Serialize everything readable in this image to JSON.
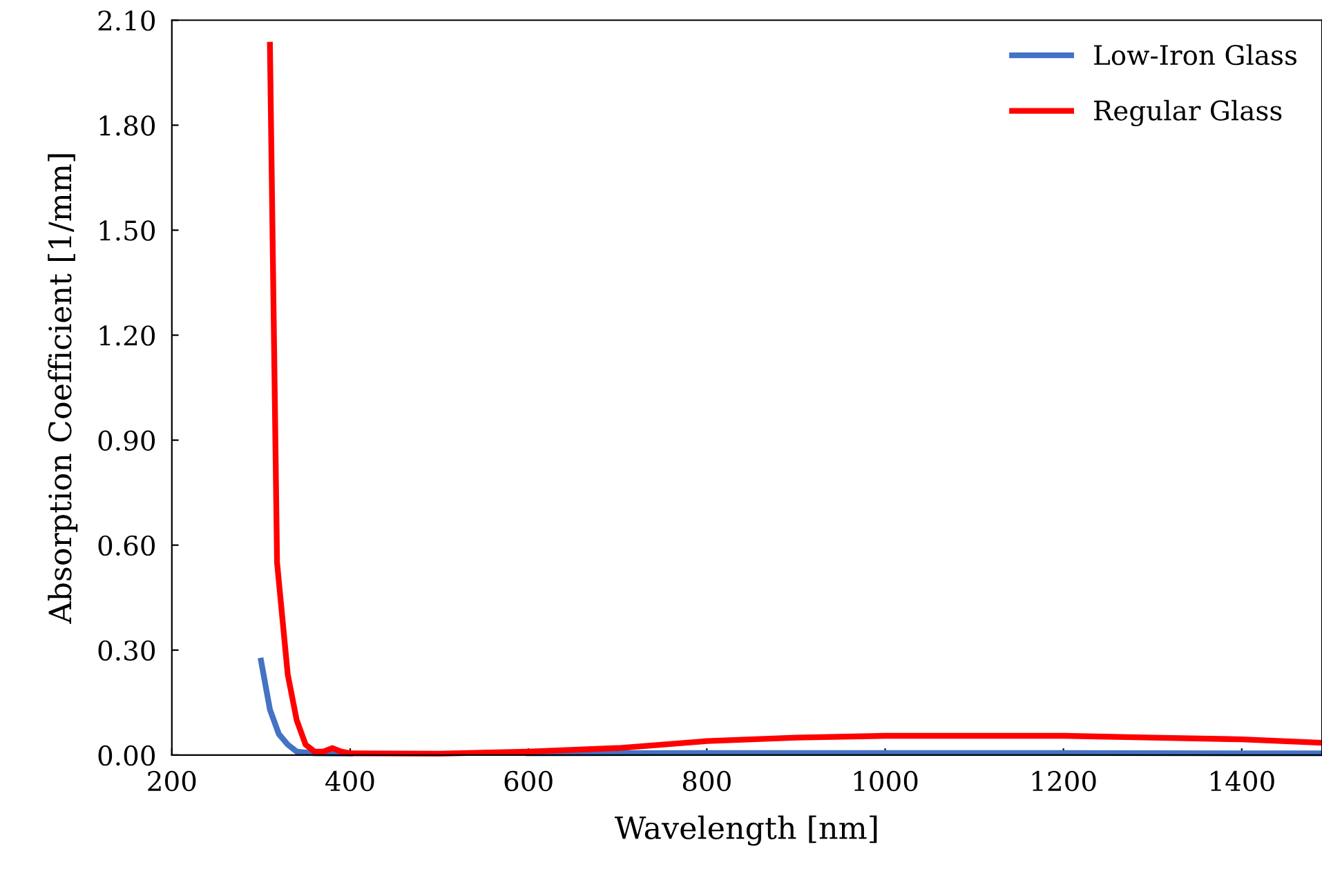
{
  "chart_data": {
    "type": "line",
    "xlabel": "Wavelength [nm]",
    "ylabel": "Absorption Coefficient [1/mm]",
    "xlim": [
      200,
      1490
    ],
    "xticks": [
      200,
      400,
      600,
      800,
      1000,
      1200,
      1400
    ],
    "ylim": [
      0,
      2.1
    ],
    "yticks": [
      {
        "value": 0,
        "label": "0.00"
      },
      {
        "value": 0.3,
        "label": "0.30"
      },
      {
        "value": 0.6,
        "label": "0.60"
      },
      {
        "value": 0.9,
        "label": "0.90"
      },
      {
        "value": 1.2,
        "label": "1.20"
      },
      {
        "value": 1.5,
        "label": "1.50"
      },
      {
        "value": 1.8,
        "label": "1.80"
      },
      {
        "value": 2.1,
        "label": "2.10"
      }
    ],
    "grid": false,
    "legend": "top right",
    "marker": "none",
    "line_style": "solid",
    "series": [
      {
        "name": "Low-Iron Glass",
        "color": "#4472c4",
        "x": [
          300,
          310,
          320,
          330,
          340,
          360,
          400,
          500,
          600,
          800,
          1000,
          1200,
          1400,
          1490
        ],
        "values": [
          0.27,
          0.13,
          0.06,
          0.03,
          0.01,
          0.005,
          0.004,
          null,
          0.005,
          0.006,
          0.006,
          0.006,
          0.005,
          0.005
        ]
      },
      {
        "name": "Regular Glass",
        "color": "#ff0000",
        "x": [
          310,
          318,
          330,
          340,
          350,
          360,
          370,
          380,
          390,
          400,
          500,
          600,
          700,
          800,
          900,
          1000,
          1100,
          1200,
          1300,
          1400,
          1490
        ],
        "values": [
          2.03,
          0.55,
          0.23,
          0.1,
          0.03,
          0.01,
          0.01,
          0.02,
          0.01,
          0.005,
          0.004,
          0.01,
          0.02,
          0.04,
          0.05,
          0.055,
          0.055,
          0.055,
          0.05,
          0.045,
          0.035
        ]
      }
    ]
  }
}
